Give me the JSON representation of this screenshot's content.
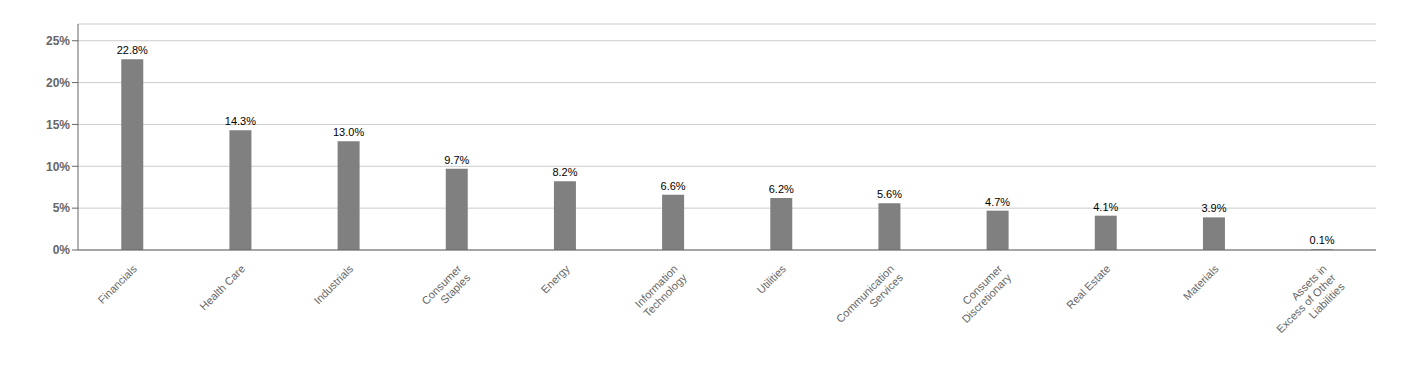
{
  "chart_data": {
    "type": "bar",
    "categories": [
      "Financials",
      "Health Care",
      "Industrials",
      "Consumer\nStaples",
      "Energy",
      "Information\nTechnology",
      "Utilities",
      "Communication\nServices",
      "Consumer\nDiscretionary",
      "Real Estate",
      "Materials",
      "Assets in\nExcess of Other\nLiabilities"
    ],
    "values": [
      22.8,
      14.3,
      13.0,
      9.7,
      8.2,
      6.6,
      6.2,
      5.6,
      4.7,
      4.1,
      3.9,
      0.1
    ],
    "value_labels": [
      "22.8%",
      "14.3%",
      "13.0%",
      "9.7%",
      "8.2%",
      "6.6%",
      "6.2%",
      "5.6%",
      "4.7%",
      "4.1%",
      "3.9%",
      "0.1%"
    ],
    "data_labels": true,
    "color": "#808080",
    "ylim": [
      0,
      27
    ],
    "yticks": [
      {
        "value": 0,
        "label": "0%"
      },
      {
        "value": 5,
        "label": "5%"
      },
      {
        "value": 10,
        "label": "10%"
      },
      {
        "value": 15,
        "label": "15%"
      },
      {
        "value": 20,
        "label": "20%"
      },
      {
        "value": 25,
        "label": "25%"
      }
    ],
    "grid": true
  }
}
